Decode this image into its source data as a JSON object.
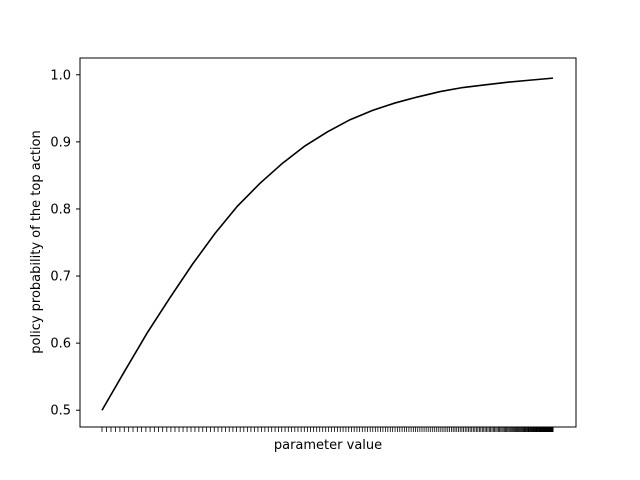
{
  "chart_data": {
    "type": "line",
    "title": "",
    "xlabel": "parameter value",
    "ylabel": "policy probability of the top action",
    "y_ticks": [
      "0.5",
      "0.6",
      "0.7",
      "0.8",
      "0.9",
      "1.0"
    ],
    "ylim": [
      0.475,
      1.025
    ],
    "x_tick_labels": "none",
    "x_tick_marks": "dense, increasingly crowded toward the right",
    "grid": false,
    "legend": "none",
    "series": [
      {
        "color": "#000000",
        "x": [
          0,
          0.05,
          0.1,
          0.15,
          0.2,
          0.25,
          0.3,
          0.35,
          0.4,
          0.45,
          0.5,
          0.55,
          0.6,
          0.65,
          0.7,
          0.75,
          0.8,
          0.85,
          0.9,
          0.95,
          1.0
        ],
        "values": [
          0.5,
          0.558,
          0.615,
          0.667,
          0.717,
          0.763,
          0.804,
          0.838,
          0.868,
          0.894,
          0.915,
          0.933,
          0.947,
          0.958,
          0.967,
          0.975,
          0.981,
          0.985,
          0.989,
          0.992,
          0.995
        ]
      }
    ]
  }
}
